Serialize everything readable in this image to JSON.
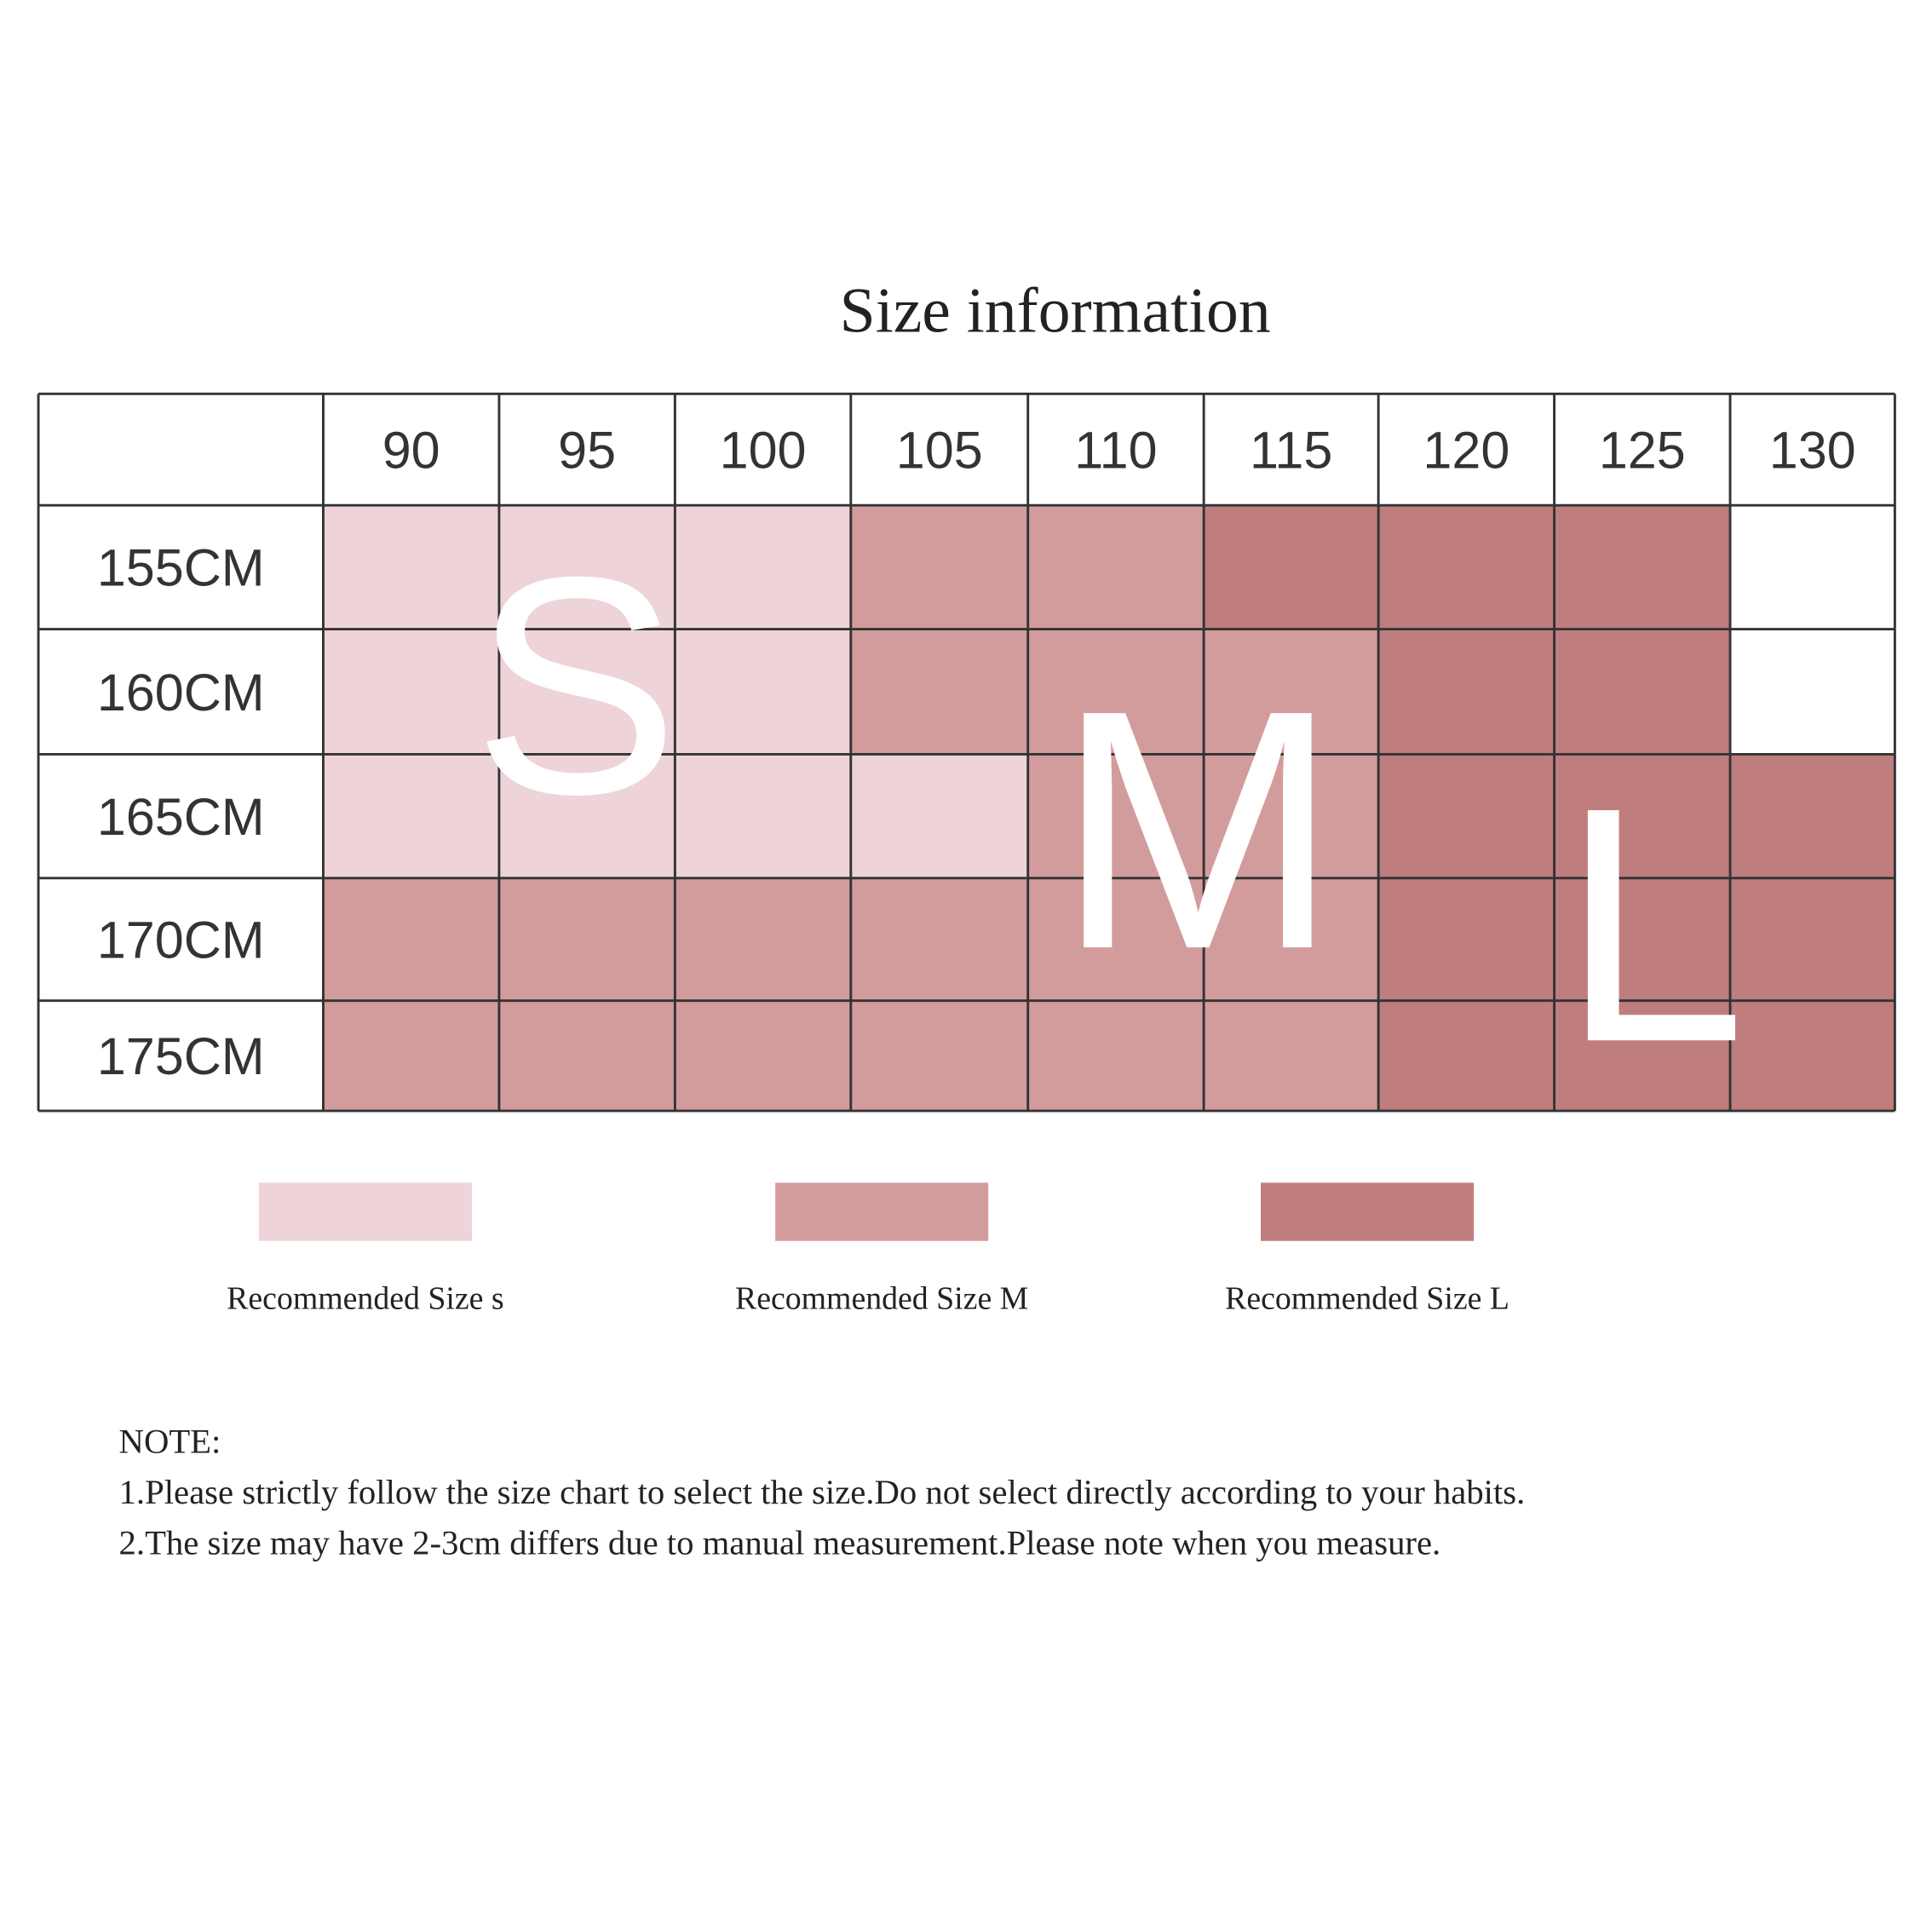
{
  "title": "Size information",
  "table": {
    "columns": [
      "90",
      "95",
      "100",
      "105",
      "110",
      "115",
      "120",
      "125",
      "130"
    ],
    "rows": [
      {
        "label": "155CM",
        "colors": [
          "#eed3d8",
          "#eed3d8",
          "#eed3d8",
          "#d39c9c",
          "#d39c9c",
          "#c07d7e",
          "#c07d7e",
          "#c07d7e",
          "#ffffff"
        ]
      },
      {
        "label": "160CM",
        "colors": [
          "#eed3d8",
          "#eed3d8",
          "#eed3d8",
          "#d39c9c",
          "#d39c9c",
          "#d39c9c",
          "#c07d7e",
          "#c07d7e",
          "#ffffff"
        ]
      },
      {
        "label": "165CM",
        "colors": [
          "#eed3d8",
          "#eed3d8",
          "#eed3d8",
          "#eed3d8",
          "#d39c9c",
          "#d39c9c",
          "#c07d7e",
          "#c07d7e",
          "#c07d7e"
        ]
      },
      {
        "label": "170CM",
        "colors": [
          "#d39c9c",
          "#d39c9c",
          "#d39c9c",
          "#d39c9c",
          "#d39c9c",
          "#d39c9c",
          "#c07d7e",
          "#c07d7e",
          "#c07d7e"
        ]
      },
      {
        "label": "175CM",
        "colors": [
          "#d39c9c",
          "#d39c9c",
          "#d39c9c",
          "#d39c9c",
          "#d39c9c",
          "#d39c9c",
          "#c07d7e",
          "#c07d7e",
          "#c07d7e"
        ]
      }
    ],
    "size_letters": [
      "S",
      "M",
      "L"
    ]
  },
  "legend": [
    {
      "label": "Recommended Size s",
      "color": "#eed3d8"
    },
    {
      "label": "Recommended Size M",
      "color": "#d39c9c"
    },
    {
      "label": "Recommended Size L",
      "color": "#c07d7e"
    }
  ],
  "notes": {
    "heading": "NOTE:",
    "items": [
      "1.Please strictly follow the size chart to select the size.Do not select directly according to your habits.",
      "2.The size may have 2-3cm differs due to manual measurement.Please note when you measure."
    ]
  }
}
